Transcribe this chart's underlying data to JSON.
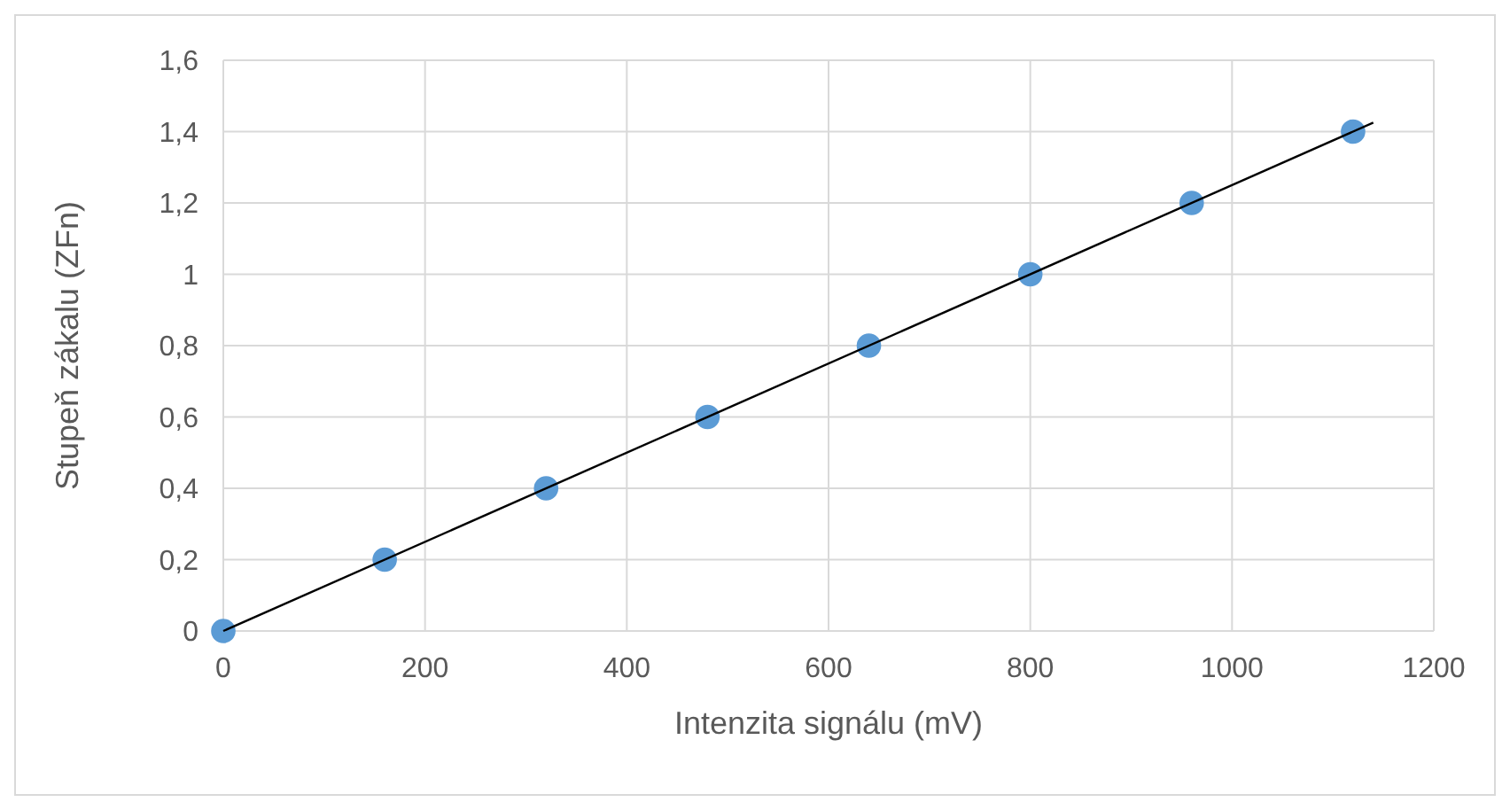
{
  "chart_data": {
    "type": "scatter",
    "xlabel": "Intenzita signálu (mV)",
    "ylabel": "Stupeň zákalu (ZFn)",
    "x": [
      0,
      160,
      320,
      480,
      640,
      800,
      960,
      1120
    ],
    "series": [
      {
        "color": "#5b9bd5",
        "marker": "circle",
        "values": [
          0,
          0.2,
          0.4,
          0.6,
          0.8,
          1,
          1.2,
          1.4
        ]
      },
      {
        "type": "line",
        "color": "#000000",
        "line_style": "solid",
        "x": [
          0,
          1140
        ],
        "values": [
          0,
          1.425
        ]
      }
    ],
    "xlim": [
      0,
      1200
    ],
    "xticks": [
      0,
      200,
      400,
      600,
      800,
      1000,
      1200
    ],
    "ylim": [
      0,
      1.6
    ],
    "yticks": [
      {
        "value": 0,
        "label": "0"
      },
      {
        "value": 0.2,
        "label": "0,2"
      },
      {
        "value": 0.4,
        "label": "0,4"
      },
      {
        "value": 0.6,
        "label": "0,6"
      },
      {
        "value": 0.8,
        "label": "0,8"
      },
      {
        "value": 1,
        "label": "1"
      },
      {
        "value": 1.2,
        "label": "1,2"
      },
      {
        "value": 1.4,
        "label": "1,4"
      },
      {
        "value": 1.6,
        "label": "1,6"
      }
    ],
    "grid": true
  }
}
